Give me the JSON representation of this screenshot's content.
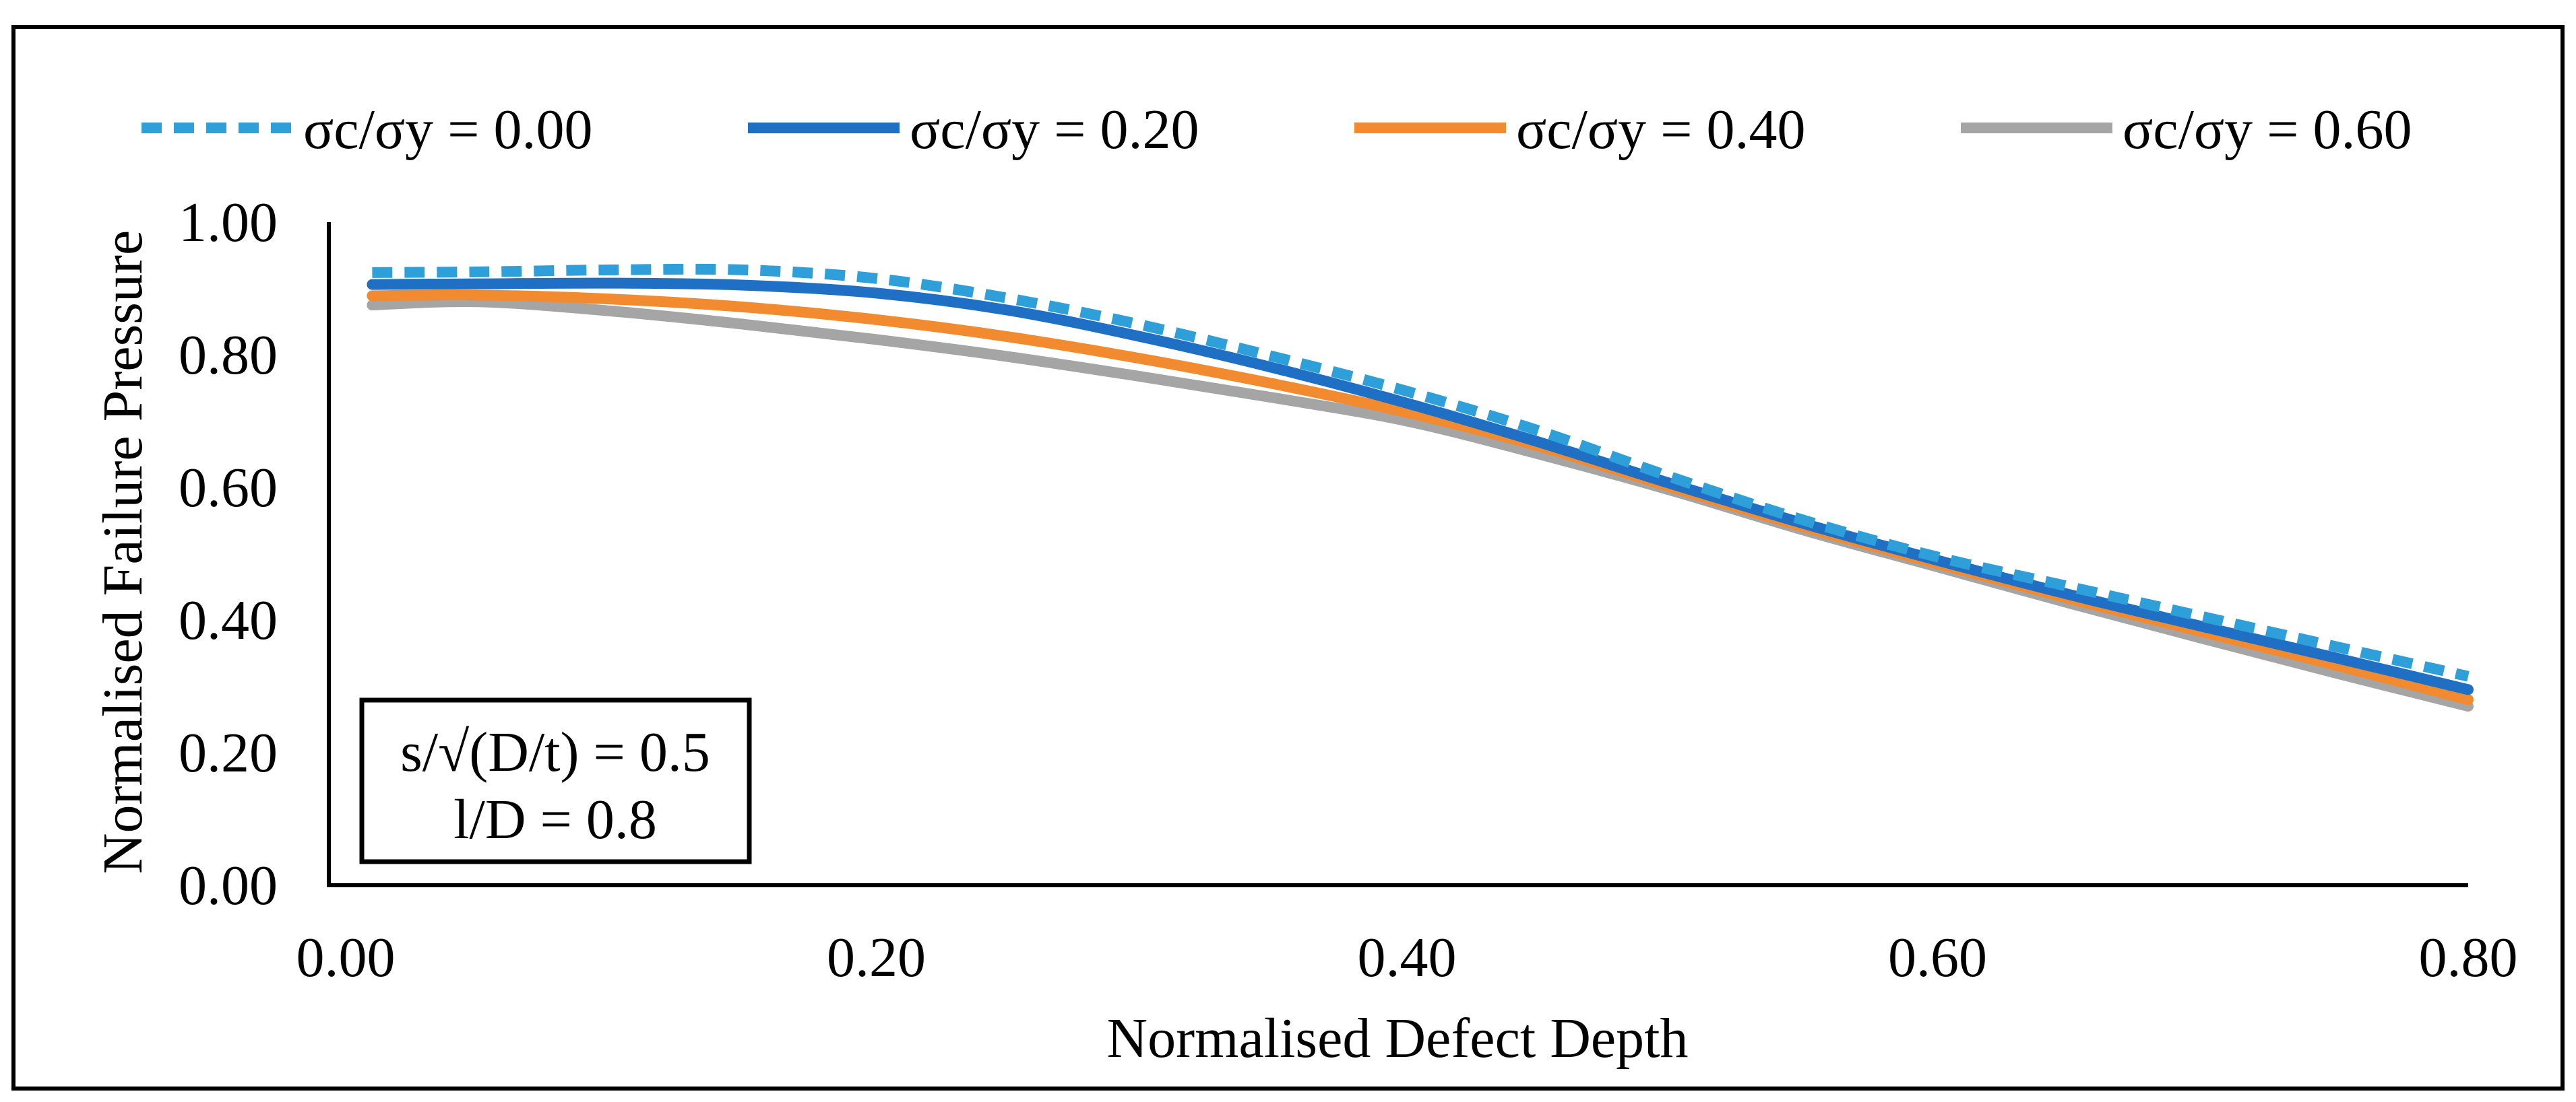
{
  "chart_data": {
    "type": "line",
    "title": "",
    "xlabel": "Normalised Defect Depth",
    "ylabel": "Normalised Failure Pressure",
    "xlim": [
      0.0,
      0.8
    ],
    "ylim": [
      0.0,
      1.0
    ],
    "x_ticks": [
      "0.00",
      "0.20",
      "0.40",
      "0.60",
      "0.80"
    ],
    "y_ticks": [
      "0.00",
      "0.20",
      "0.40",
      "0.60",
      "0.80",
      "1.00"
    ],
    "grid": false,
    "legend_position": "top",
    "annotation": {
      "line1": "s/√(D/t) = 0.5",
      "line2": "l/D = 0.8"
    },
    "series": [
      {
        "name": "σc/σy = 0.00",
        "color": "#2E9FD8",
        "style": "dashed",
        "x": [
          0.01,
          0.05,
          0.1,
          0.15,
          0.2,
          0.25,
          0.3,
          0.35,
          0.4,
          0.45,
          0.5,
          0.55,
          0.6,
          0.65,
          0.7,
          0.75,
          0.8
        ],
        "y": [
          0.924,
          0.925,
          0.928,
          0.928,
          0.915,
          0.885,
          0.845,
          0.797,
          0.745,
          0.685,
          0.615,
          0.55,
          0.495,
          0.45,
          0.405,
          0.36,
          0.315
        ]
      },
      {
        "name": "σc/σy = 0.20",
        "color": "#1F6FC5",
        "style": "solid",
        "x": [
          0.01,
          0.05,
          0.1,
          0.15,
          0.2,
          0.25,
          0.3,
          0.35,
          0.4,
          0.45,
          0.5,
          0.55,
          0.6,
          0.65,
          0.7,
          0.75,
          0.8
        ],
        "y": [
          0.906,
          0.907,
          0.908,
          0.905,
          0.893,
          0.867,
          0.827,
          0.78,
          0.727,
          0.668,
          0.605,
          0.545,
          0.49,
          0.438,
          0.39,
          0.343,
          0.295
        ]
      },
      {
        "name": "σc/σy = 0.40",
        "color": "#F28A30",
        "style": "solid",
        "x": [
          0.01,
          0.05,
          0.1,
          0.15,
          0.2,
          0.25,
          0.3,
          0.35,
          0.4,
          0.45,
          0.5,
          0.55,
          0.6,
          0.65,
          0.7,
          0.75,
          0.8
        ],
        "y": [
          0.889,
          0.89,
          0.884,
          0.872,
          0.853,
          0.827,
          0.794,
          0.756,
          0.713,
          0.662,
          0.6,
          0.54,
          0.485,
          0.432,
          0.382,
          0.332,
          0.28
        ]
      },
      {
        "name": "σc/σy = 0.60",
        "color": "#A5A5A5",
        "style": "solid",
        "x": [
          0.01,
          0.05,
          0.1,
          0.15,
          0.2,
          0.25,
          0.3,
          0.35,
          0.4,
          0.45,
          0.5,
          0.55,
          0.6,
          0.65,
          0.7,
          0.75,
          0.8
        ],
        "y": [
          0.875,
          0.88,
          0.866,
          0.846,
          0.823,
          0.797,
          0.767,
          0.735,
          0.7,
          0.65,
          0.595,
          0.535,
          0.48,
          0.425,
          0.372,
          0.32,
          0.27
        ]
      }
    ]
  }
}
